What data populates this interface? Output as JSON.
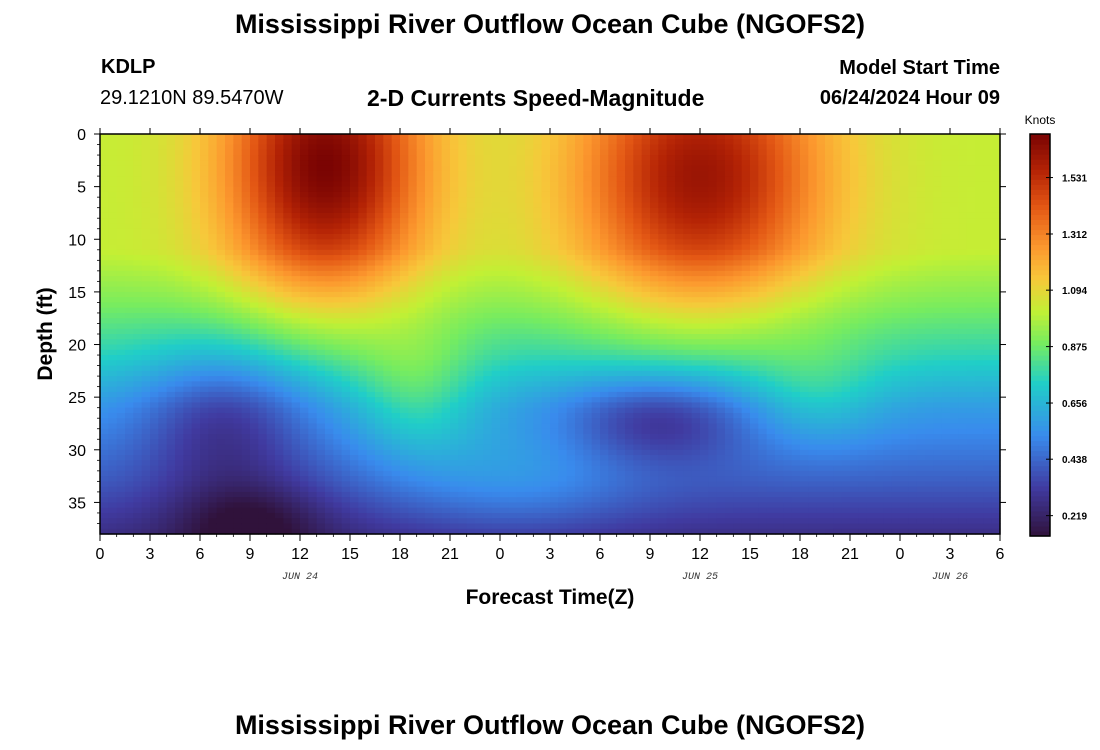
{
  "titles": {
    "top": "Mississippi River Outflow Ocean Cube (NGOFS2)",
    "bottom": "Mississippi River Outflow Ocean Cube (NGOFS2)"
  },
  "header": {
    "station": "KDLP",
    "latlon": "29.1210N  89.5470W",
    "subtitle": "2-D Currents Speed-Magnitude",
    "model_start_label": "Model Start Time",
    "model_start_value": "06/24/2024 Hour 09"
  },
  "chart_data": {
    "type": "heatmap",
    "title": "2-D Currents Speed-Magnitude",
    "xlabel": "Forecast Time(Z)",
    "ylabel": "Depth (ft)",
    "x_tick_labels": [
      "0",
      "3",
      "6",
      "9",
      "12",
      "15",
      "18",
      "21",
      "0",
      "3",
      "6",
      "9",
      "12",
      "15",
      "18",
      "21",
      "0",
      "3",
      "6"
    ],
    "x_range_hours": [
      0,
      54
    ],
    "date_labels": [
      {
        "label": "JUN 24",
        "hour": 12
      },
      {
        "label": "JUN 25",
        "hour": 36
      },
      {
        "label": "JUN 26",
        "hour": 51
      }
    ],
    "y_ticks": [
      0,
      5,
      10,
      15,
      20,
      25,
      30,
      35
    ],
    "y_range_ft": [
      0,
      38
    ],
    "y_inverted": true,
    "colorbar": {
      "title": "Knots",
      "tick_labels": [
        "0.219",
        "0.438",
        "0.656",
        "0.875",
        "1.094",
        "1.312",
        "1.531"
      ],
      "range": [
        0.14,
        1.7
      ]
    },
    "features": [
      {
        "hour": 13.5,
        "depth_ft": 3,
        "speed_kt": 1.7
      },
      {
        "hour": 36,
        "depth_ft": 4,
        "speed_kt": 1.62
      },
      {
        "hour": 0,
        "depth_ft": 5,
        "speed_kt": 1.05
      },
      {
        "hour": 22.5,
        "depth_ft": 8,
        "speed_kt": 1.0
      },
      {
        "hour": 49,
        "depth_ft": 5,
        "speed_kt": 1.0
      },
      {
        "hour": 19,
        "depth_ft": 25,
        "speed_kt": 0.95
      },
      {
        "hour": 43,
        "depth_ft": 25,
        "speed_kt": 0.8
      },
      {
        "hour": 7.5,
        "depth_ft": 27,
        "speed_kt": 0.55
      },
      {
        "hour": 33.5,
        "depth_ft": 27,
        "speed_kt": 0.42
      },
      {
        "hour": 9,
        "depth_ft": 37,
        "speed_kt": 0.15
      },
      {
        "hour": 25,
        "depth_ft": 33,
        "speed_kt": 0.6
      }
    ]
  }
}
